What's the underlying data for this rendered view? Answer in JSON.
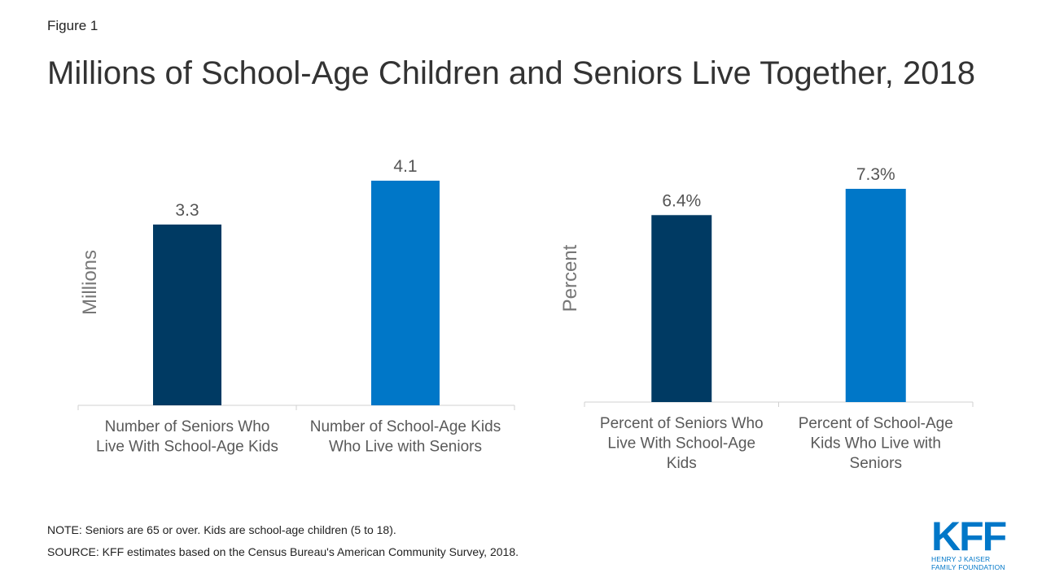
{
  "figure_label": "Figure 1",
  "title": "Millions of School-Age Children and Seniors Live Together, 2018",
  "chart_data": [
    {
      "type": "bar",
      "ylabel": "Millions",
      "categories": [
        [
          "Number of Seniors Who",
          "Live With School-Age Kids"
        ],
        [
          "Number of School-Age Kids",
          "Who Live with Seniors"
        ]
      ],
      "values": [
        3.3,
        4.1
      ],
      "value_labels": [
        "3.3",
        "4.1"
      ],
      "colors": [
        "#003a63",
        "#0077c8"
      ],
      "ylim": [
        0,
        4.1
      ]
    },
    {
      "type": "bar",
      "ylabel": "Percent",
      "categories": [
        [
          "Percent of Seniors Who",
          "Live With School-Age",
          "Kids"
        ],
        [
          "Percent of School-Age",
          "Kids Who Live with",
          "Seniors"
        ]
      ],
      "values": [
        6.4,
        7.3
      ],
      "value_labels": [
        "6.4%",
        "7.3%"
      ],
      "colors": [
        "#003a63",
        "#0077c8"
      ],
      "ylim": [
        0,
        7.3
      ]
    }
  ],
  "note": "NOTE:  Seniors are 65 or over.  Kids are school-age children (5 to 18).",
  "source": "SOURCE: KFF estimates based on the Census Bureau's American Community Survey, 2018.",
  "logo": {
    "main": "KFF",
    "line1": "HENRY J KAISER",
    "line2": "FAMILY FOUNDATION"
  }
}
